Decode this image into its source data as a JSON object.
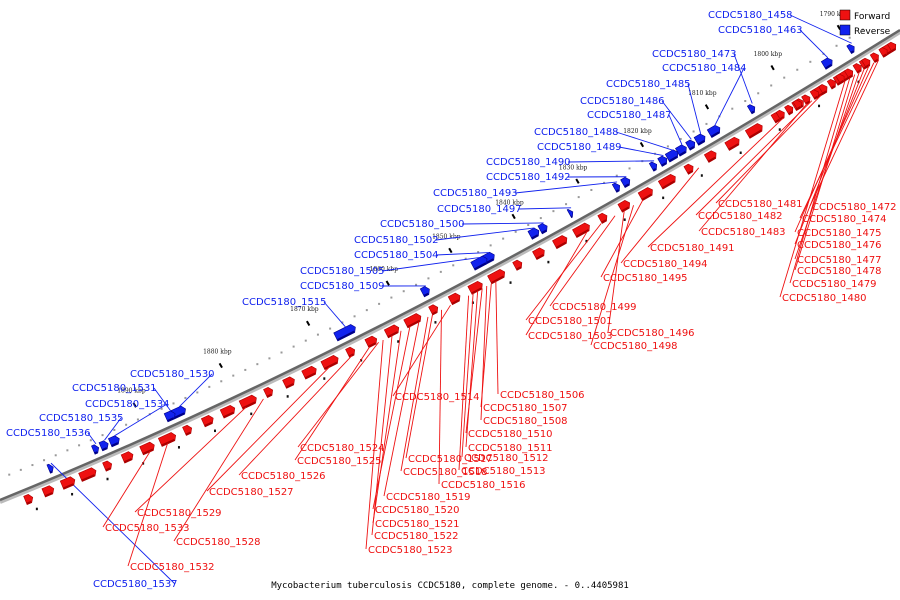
{
  "caption": "Mycobacterium tuberculosis CCDC5180, complete genome. - 0..4405981",
  "legend": [
    {
      "label": "Forward",
      "color": "#ee1111"
    },
    {
      "label": "Reverse",
      "color": "#1122ee"
    }
  ],
  "colors": {
    "forward": "#ee1111",
    "reverse": "#1122ee",
    "backbone": "#666666"
  },
  "kbp_ticks": [
    "1790 kbp",
    "1800 kbp",
    "1810 kbp",
    "1820 kbp",
    "1830 kbp",
    "1840 kbp",
    "1850 kbp",
    "1860 kbp",
    "1870 kbp",
    "1880 kbp",
    "1890 kbp"
  ],
  "reverse_genes": [
    "CCDC5180_1458",
    "CCDC5180_1463",
    "CCDC5180_1473",
    "CCDC5180_1484",
    "CCDC5180_1485",
    "CCDC5180_1486",
    "CCDC5180_1487",
    "CCDC5180_1488",
    "CCDC5180_1489",
    "CCDC5180_1490",
    "CCDC5180_1492",
    "CCDC5180_1493",
    "CCDC5180_1497",
    "CCDC5180_1500",
    "CCDC5180_1502",
    "CCDC5180_1504",
    "CCDC5180_1505",
    "CCDC5180_1509",
    "CCDC5180_1515",
    "CCDC5180_1530",
    "CCDC5180_1531",
    "CCDC5180_1534",
    "CCDC5180_1535",
    "CCDC5180_1536",
    "CCDC5180_1537"
  ],
  "forward_genes": [
    "CCDC5180_1472",
    "CCDC5180_1474",
    "CCDC5180_1475",
    "CCDC5180_1476",
    "CCDC5180_1477",
    "CCDC5180_1478",
    "CCDC5180_1479",
    "CCDC5180_1480",
    "CCDC5180_1481",
    "CCDC5180_1482",
    "CCDC5180_1483",
    "CCDC5180_1491",
    "CCDC5180_1494",
    "CCDC5180_1495",
    "CCDC5180_1499",
    "CCDC5180_1501",
    "CCDC5180_1496",
    "CCDC5180_1498",
    "CCDC5180_1503",
    "CCDC5180_1506",
    "CCDC5180_1507",
    "CCDC5180_1508",
    "CCDC5180_1510",
    "CCDC5180_1511",
    "CCDC5180_1512",
    "CCDC5180_1513",
    "CCDC5180_1514",
    "CCDC5180_1516",
    "CCDC5180_1517",
    "CCDC5180_1518",
    "CCDC5180_1519",
    "CCDC5180_1520",
    "CCDC5180_1521",
    "CCDC5180_1522",
    "CCDC5180_1523",
    "CCDC5180_1524",
    "CCDC5180_1525",
    "CCDC5180_1526",
    "CCDC5180_1527",
    "CCDC5180_1528",
    "CCDC5180_1529",
    "CCDC5180_1532",
    "CCDC5180_1533"
  ]
}
